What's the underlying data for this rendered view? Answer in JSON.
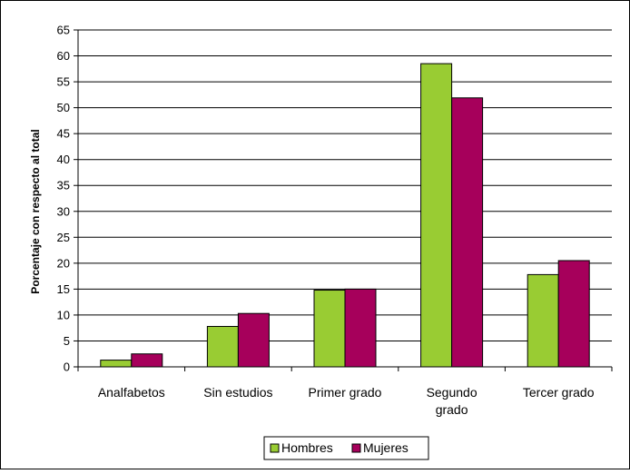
{
  "chart_data": {
    "type": "bar",
    "categories": [
      "Analfabetos",
      "Sin estudios",
      "Primer grado",
      "Segundo grado",
      "Tercer grado"
    ],
    "category_lines": [
      [
        "Analfabetos"
      ],
      [
        "Sin estudios"
      ],
      [
        "Primer grado"
      ],
      [
        "Segundo",
        "grado"
      ],
      [
        "Tercer grado"
      ]
    ],
    "series": [
      {
        "name": "Hombres",
        "color": "#99cc33",
        "values": [
          1.3,
          7.8,
          14.8,
          58.5,
          17.8
        ]
      },
      {
        "name": "Mujeres",
        "color": "#a6005b",
        "values": [
          2.5,
          10.3,
          15.0,
          51.9,
          20.5
        ]
      }
    ],
    "title": "",
    "xlabel": "",
    "ylabel": "Porcentaje con respecto al total",
    "ylim": [
      0,
      65
    ],
    "yticks": [
      0,
      5,
      10,
      15,
      20,
      25,
      30,
      35,
      40,
      45,
      50,
      55,
      60,
      65
    ],
    "grid": true,
    "legend_position": "bottom"
  }
}
